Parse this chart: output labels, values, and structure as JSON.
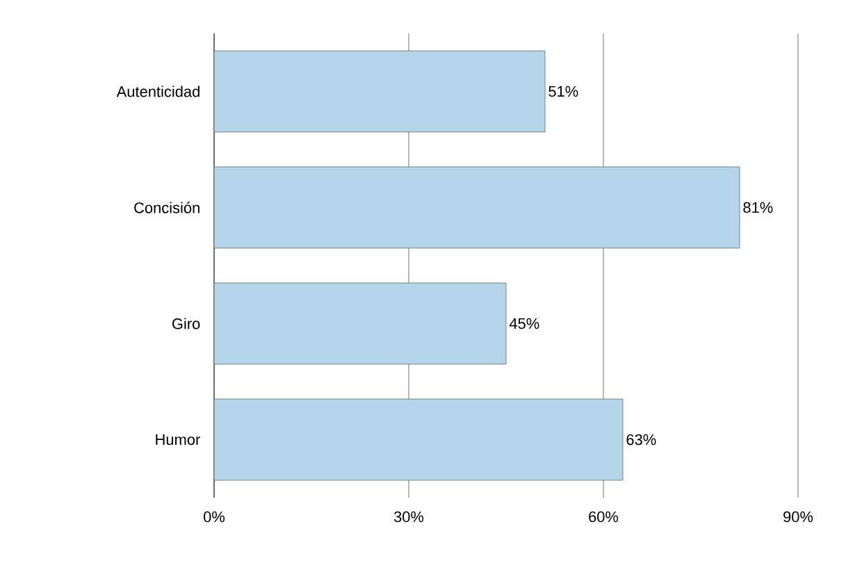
{
  "chart_data": {
    "type": "bar",
    "orientation": "horizontal",
    "categories": [
      "Autenticidad",
      "Concisión",
      "Giro",
      "Humor"
    ],
    "values": [
      51,
      81,
      45,
      63
    ],
    "value_labels": [
      "51%",
      "81%",
      "45%",
      "63%"
    ],
    "color": "#b4d4ea",
    "xlim": [
      0,
      90
    ],
    "xticks": [
      {
        "value": 0,
        "label": "0%"
      },
      {
        "value": 30,
        "label": "30%"
      },
      {
        "value": 60,
        "label": "60%"
      },
      {
        "value": 90,
        "label": "90%"
      }
    ],
    "grid": "x"
  }
}
